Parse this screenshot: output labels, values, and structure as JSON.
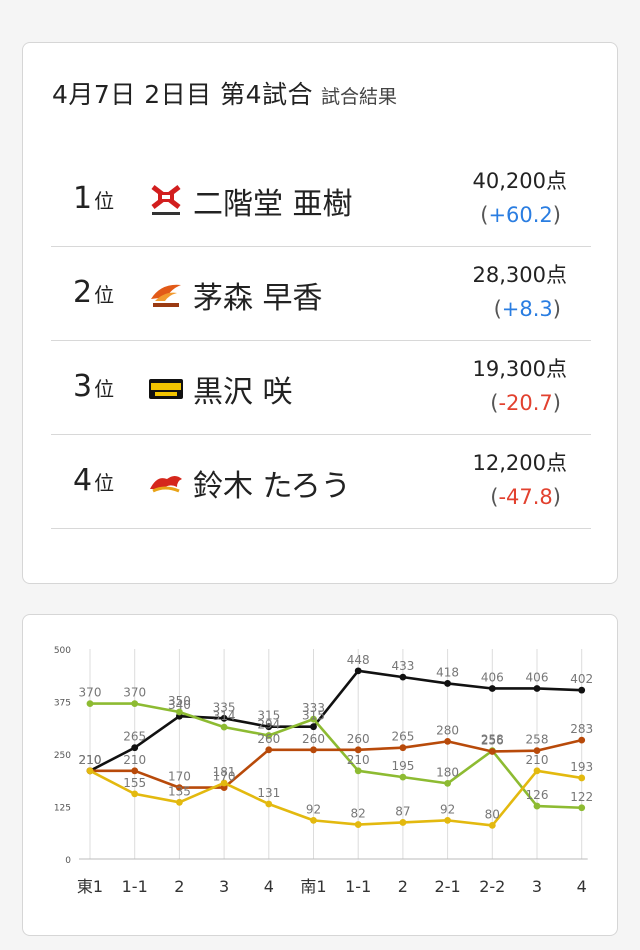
{
  "header": {
    "title": "4月7日 2日目 第4試合",
    "subtitle": "試合結果"
  },
  "results": [
    {
      "rank": "1",
      "suffix": "位",
      "team_icon": "fu-binkazan-logo-icon",
      "name": "二階堂 亜樹",
      "points": "40,200点",
      "diff": "+60.2",
      "sign": "pos",
      "open": "(",
      "close": ")"
    },
    {
      "rank": "2",
      "suffix": "位",
      "team_icon": "phoenix-logo-icon",
      "name": "茅森 早香",
      "points": "28,300点",
      "diff": "+8.3",
      "sign": "pos",
      "open": "(",
      "close": ")"
    },
    {
      "rank": "3",
      "suffix": "位",
      "team_icon": "raiden-logo-icon",
      "name": "黒沢 咲",
      "points": "19,300点",
      "diff": "-20.7",
      "sign": "neg",
      "open": "(",
      "close": ")"
    },
    {
      "rank": "4",
      "suffix": "位",
      "team_icon": "dragon-logo-icon",
      "name": "鈴木 たろう",
      "points": "12,200点",
      "diff": "-47.8",
      "sign": "neg",
      "open": "(",
      "close": ")"
    }
  ],
  "chart_data": {
    "type": "line",
    "categories": [
      "東1",
      "1-1",
      "2",
      "3",
      "4",
      "南1",
      "1-1",
      "2",
      "2-1",
      "2-2",
      "3",
      "4"
    ],
    "ylim": [
      0,
      500
    ],
    "yticks": [
      0,
      125,
      250,
      375,
      500
    ],
    "grid": "vertical",
    "series": [
      {
        "color": "#111111",
        "values": [
          210,
          265,
          340,
          335,
          315,
          315,
          448,
          433,
          418,
          406,
          406,
          402
        ]
      },
      {
        "color": "#8dbb32",
        "values": [
          370,
          370,
          350,
          314,
          294,
          333,
          210,
          195,
          180,
          258,
          126,
          122
        ]
      },
      {
        "color": "#b84a0a",
        "values": [
          210,
          210,
          170,
          170,
          260,
          260,
          260,
          265,
          280,
          256,
          258,
          283
        ]
      },
      {
        "color": "#e3b90f",
        "values": [
          210,
          155,
          135,
          181,
          131,
          92,
          82,
          87,
          92,
          80,
          210,
          193
        ]
      }
    ]
  }
}
